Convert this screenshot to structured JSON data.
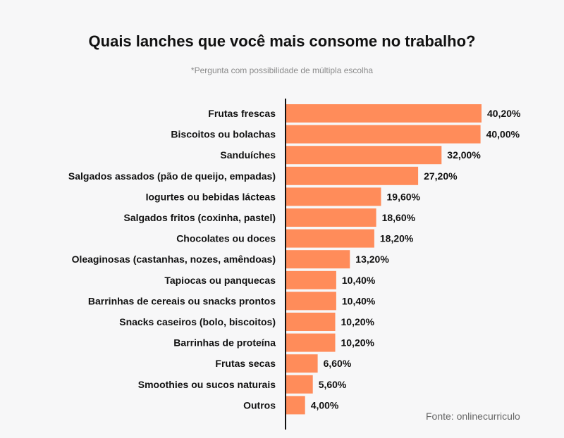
{
  "header": {
    "title": "Quais lanches que você mais consome no trabalho?",
    "subtitle": "*Pergunta com possibilidade de múltipla escolha"
  },
  "footer": {
    "source": "Fonte: onlinecurriculo"
  },
  "colors": {
    "bar": "#ff8c5a",
    "axis": "#111111",
    "background": "#f7f7f8"
  },
  "chart_data": {
    "type": "bar",
    "orientation": "horizontal",
    "title": "Quais lanches que você mais consome no trabalho?",
    "subtitle": "*Pergunta com possibilidade de múltipla escolha",
    "xlabel": "",
    "ylabel": "",
    "unit": "%",
    "grid": false,
    "legend": "none",
    "categories": [
      "Frutas frescas",
      "Biscoitos ou bolachas",
      "Sanduíches",
      "Salgados assados (pão de queijo, empadas)",
      "Iogurtes ou bebidas lácteas",
      "Salgados fritos (coxinha, pastel)",
      "Chocolates ou doces",
      "Oleaginosas (castanhas, nozes, amêndoas)",
      "Tapiocas ou panquecas",
      "Barrinhas de cereais ou snacks prontos",
      "Snacks caseiros (bolo, biscoitos)",
      "Barrinhas de proteína",
      "Frutas secas",
      "Smoothies ou sucos naturais",
      "Outros"
    ],
    "values": [
      40.2,
      40.0,
      32.0,
      27.2,
      19.6,
      18.6,
      18.2,
      13.2,
      10.4,
      10.4,
      10.2,
      10.2,
      6.6,
      5.6,
      4.0
    ],
    "value_labels": [
      "40,20%",
      "40,00%",
      "32,00%",
      "27,20%",
      "19,60%",
      "18,60%",
      "18,20%",
      "13,20%",
      "10,40%",
      "10,40%",
      "10,20%",
      "10,20%",
      "6,60%",
      "5,60%",
      "4,00%"
    ],
    "xlim": [
      0,
      40.2
    ]
  }
}
